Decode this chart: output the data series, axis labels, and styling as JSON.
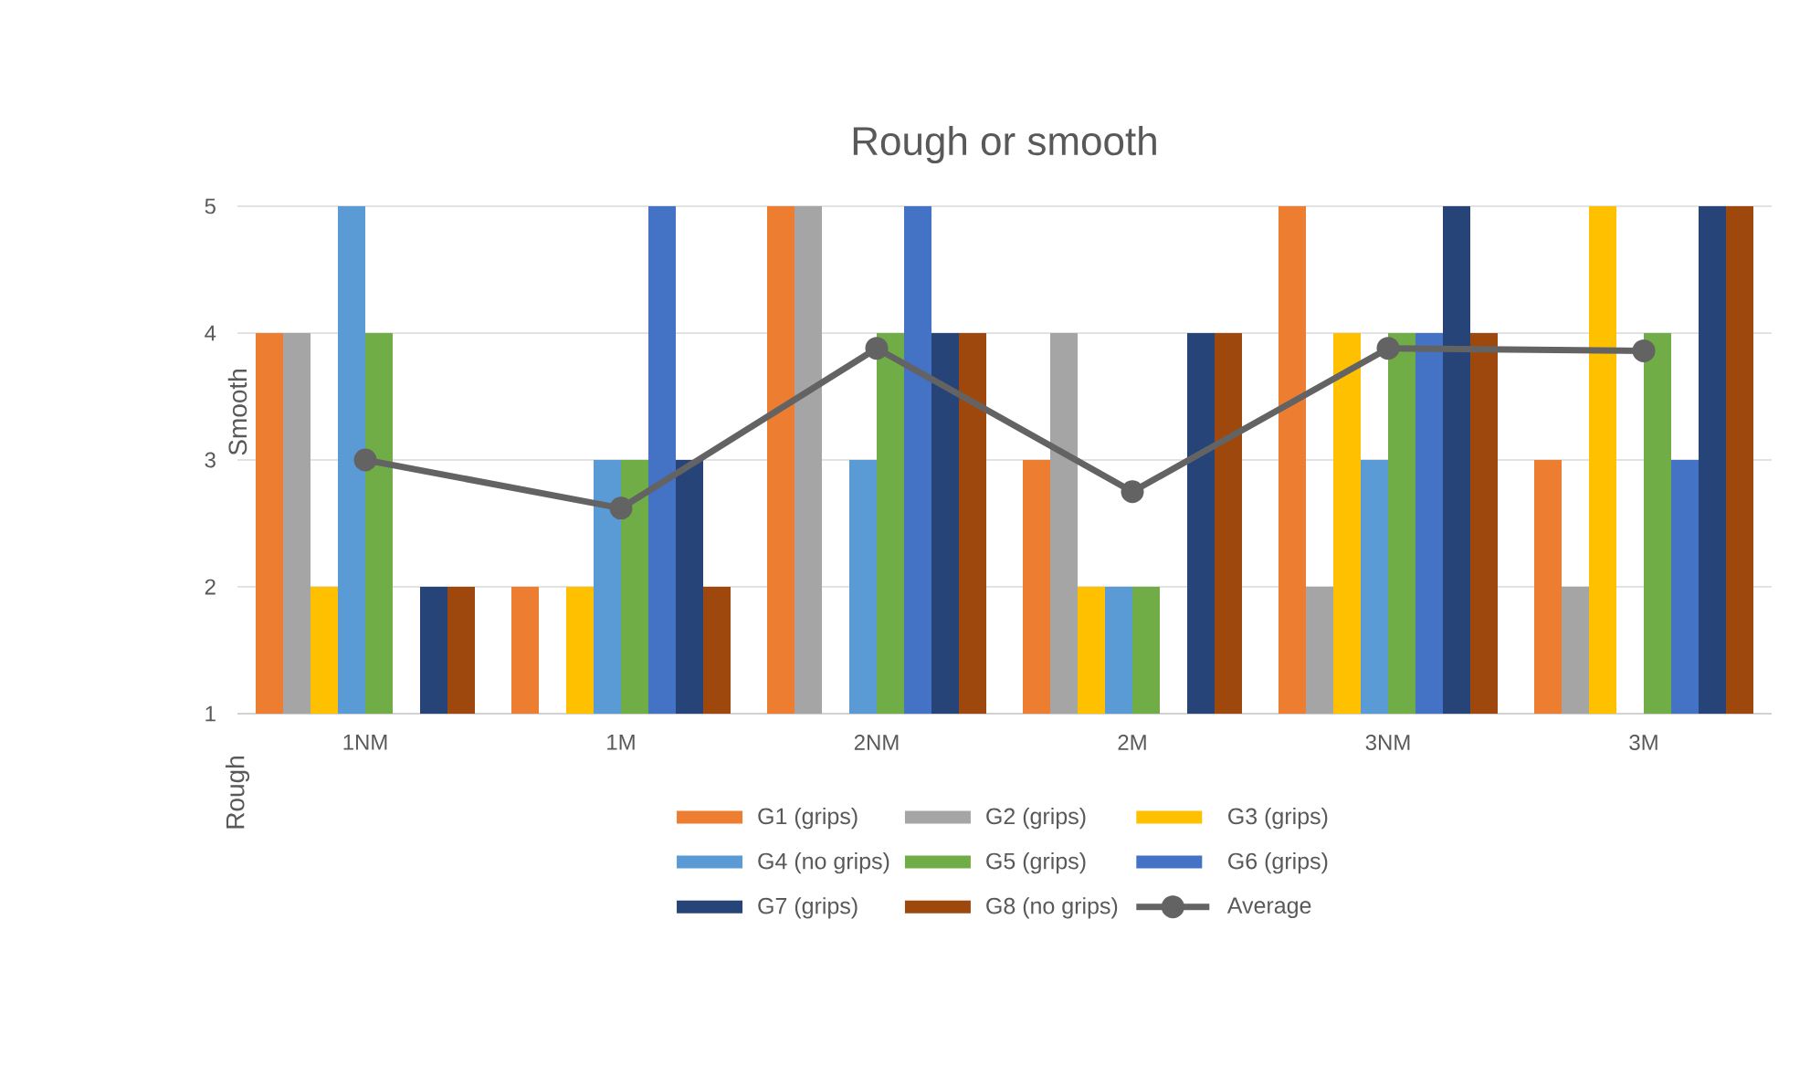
{
  "chart_data": {
    "type": "bar",
    "title": "Rough or smooth",
    "annotations": [
      "Rough",
      "Smooth"
    ],
    "categories": [
      "1NM",
      "1M",
      "2NM",
      "2M",
      "3NM",
      "3M"
    ],
    "series": [
      {
        "name": "G1 (grips)",
        "color": "#ed7d31",
        "values": [
          4,
          2,
          5,
          3,
          5,
          3
        ]
      },
      {
        "name": "G2 (grips)",
        "color": "#a5a5a5",
        "values": [
          4,
          1,
          5,
          4,
          2,
          2
        ]
      },
      {
        "name": "G3 (grips)",
        "color": "#ffc000",
        "values": [
          2,
          2,
          1,
          2,
          4,
          5
        ]
      },
      {
        "name": "G4 (no grips)",
        "color": "#5b9bd5",
        "values": [
          5,
          3,
          3,
          2,
          3,
          null
        ]
      },
      {
        "name": "G5 (grips)",
        "color": "#70ad47",
        "values": [
          4,
          3,
          4,
          2,
          4,
          4
        ]
      },
      {
        "name": "G6 (grips)",
        "color": "#4472c4",
        "values": [
          1,
          5,
          5,
          1,
          4,
          3
        ]
      },
      {
        "name": "G7 (grips)",
        "color": "#264478",
        "values": [
          2,
          3,
          4,
          4,
          5,
          5
        ]
      },
      {
        "name": "G8 (no grips)",
        "color": "#9e480e",
        "values": [
          2,
          2,
          4,
          4,
          4,
          5
        ]
      },
      {
        "name": "Average",
        "type": "line",
        "color": "#636363",
        "marker": "circle",
        "values": [
          3.0,
          2.62,
          3.88,
          2.75,
          3.88,
          3.86
        ]
      }
    ],
    "ylim": [
      1,
      5
    ],
    "yticks": [
      1,
      2,
      3,
      4,
      5
    ],
    "grid": "y",
    "legend": "bottom"
  }
}
